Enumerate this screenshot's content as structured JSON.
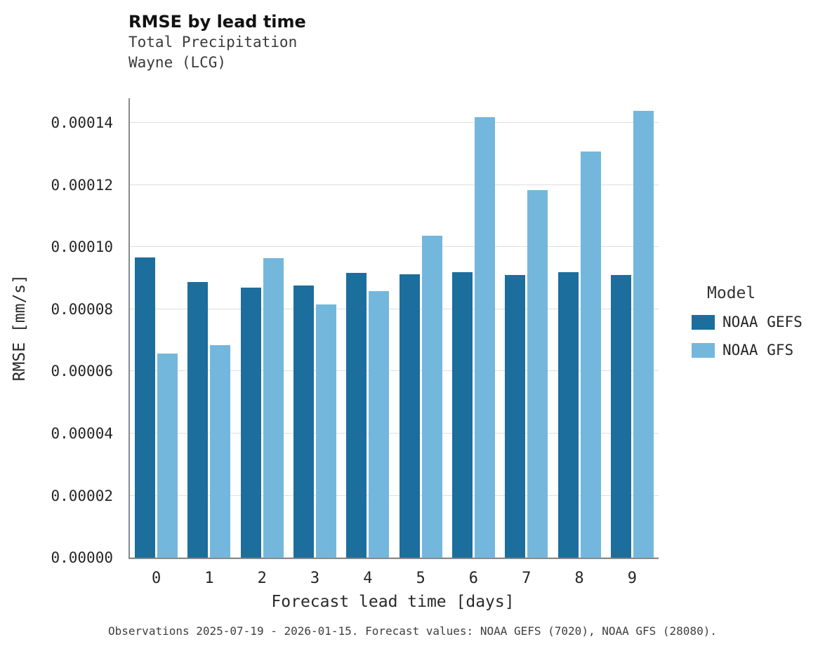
{
  "header": {
    "title": "RMSE by lead time",
    "subtitle1": "Total Precipitation",
    "subtitle2": "Wayne (LCG)"
  },
  "chart_data": {
    "type": "bar",
    "title": "RMSE by lead time",
    "subtitle": [
      "Total Precipitation",
      "Wayne (LCG)"
    ],
    "categories": [
      "0",
      "1",
      "2",
      "3",
      "4",
      "5",
      "6",
      "7",
      "8",
      "9"
    ],
    "series": [
      {
        "name": "NOAA GEFS",
        "color": "#1c6e9d",
        "values": [
          9.66e-05,
          8.89e-05,
          8.71e-05,
          8.76e-05,
          9.17e-05,
          9.12e-05,
          9.19e-05,
          9.1e-05,
          9.2e-05,
          9.11e-05
        ]
      },
      {
        "name": "NOAA GFS",
        "color": "#74b7dc",
        "values": [
          6.57e-05,
          6.84e-05,
          9.64e-05,
          8.15e-05,
          8.58e-05,
          0.0001037,
          0.0001419,
          0.0001185,
          0.0001308,
          0.0001439
        ]
      }
    ],
    "xlabel": "Forecast lead time [days]",
    "ylabel": "RMSE [mm/s]",
    "ylim": [
      0,
      0.000148
    ],
    "yticks": [
      0,
      2e-05,
      4e-05,
      6e-05,
      8e-05,
      0.0001,
      0.00012,
      0.00014
    ],
    "grid": true,
    "legend_title": "Model",
    "legend_position": "right"
  },
  "caption": "Observations 2025-07-19 - 2026-01-15. Forecast values: NOAA GEFS (7020), NOAA GFS (28080)."
}
